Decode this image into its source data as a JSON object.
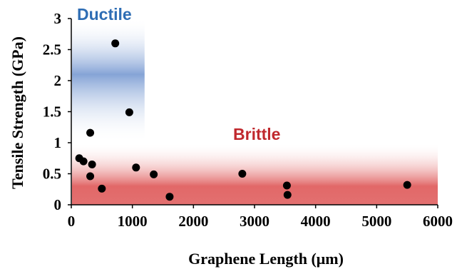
{
  "chart_data": {
    "type": "scatter",
    "title": "",
    "xlabel": "Graphene Length (μm)",
    "ylabel": "Tensile Strength (GPa)",
    "xlim": [
      0,
      6000
    ],
    "ylim": [
      0,
      3
    ],
    "xticks": [
      "0",
      "1000",
      "2000",
      "3000",
      "4000",
      "5000",
      "6000"
    ],
    "yticks": [
      "0",
      "0.5",
      "1",
      "1.5",
      "2",
      "2.5",
      "3"
    ],
    "grid": false,
    "regions": [
      {
        "label": "Ductile",
        "color": "#2e6db4",
        "fill": "#7f9fd4",
        "x_range": [
          0,
          1200
        ],
        "y_range": [
          1.0,
          3.0
        ]
      },
      {
        "label": "Brittle",
        "color": "#c0282d",
        "fill": "#e06060",
        "x_range": [
          0,
          6000
        ],
        "y_range": [
          0,
          1.0
        ]
      }
    ],
    "points": [
      {
        "x": 720,
        "y": 2.6
      },
      {
        "x": 950,
        "y": 1.49
      },
      {
        "x": 310,
        "y": 1.16
      },
      {
        "x": 130,
        "y": 0.75
      },
      {
        "x": 200,
        "y": 0.7
      },
      {
        "x": 340,
        "y": 0.65
      },
      {
        "x": 310,
        "y": 0.46
      },
      {
        "x": 500,
        "y": 0.26
      },
      {
        "x": 1060,
        "y": 0.6
      },
      {
        "x": 1350,
        "y": 0.49
      },
      {
        "x": 1610,
        "y": 0.13
      },
      {
        "x": 2800,
        "y": 0.5
      },
      {
        "x": 3530,
        "y": 0.31
      },
      {
        "x": 3540,
        "y": 0.16
      },
      {
        "x": 5500,
        "y": 0.32
      }
    ],
    "marker_color": "#000000"
  }
}
